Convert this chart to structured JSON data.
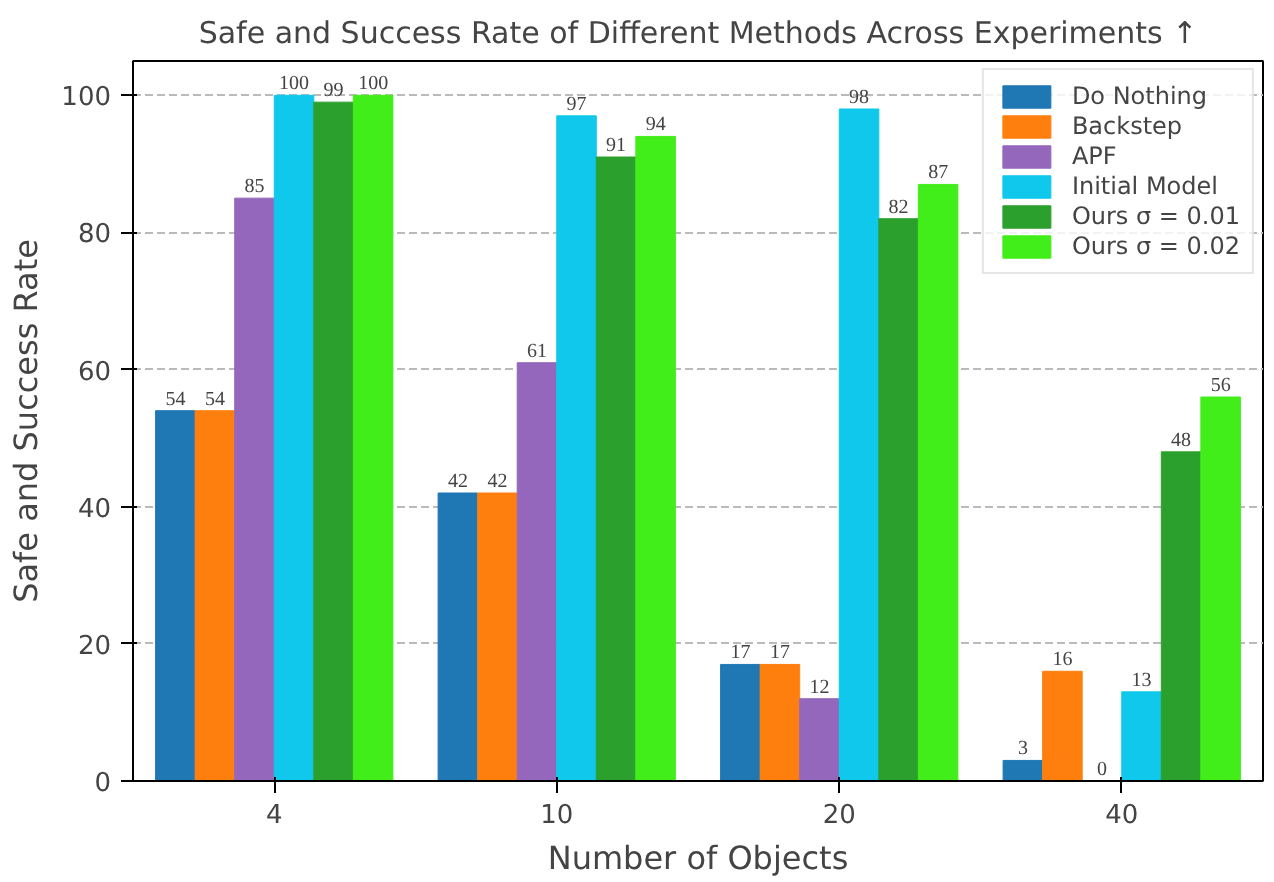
{
  "chart_data": {
    "type": "bar",
    "title": "Safe and Success Rate of Different Methods Across Experiments ↑",
    "xlabel": "Number of Objects",
    "ylabel": "Safe and Success Rate",
    "categories": [
      "4",
      "10",
      "20",
      "40"
    ],
    "series": [
      {
        "name": "Do Nothing",
        "color": "#1f77b4",
        "values": [
          54,
          42,
          17,
          3
        ]
      },
      {
        "name": "Backstep",
        "color": "#ff7f0e",
        "values": [
          54,
          42,
          17,
          16
        ]
      },
      {
        "name": "APF",
        "color": "#9467bd",
        "values": [
          85,
          61,
          12,
          0
        ]
      },
      {
        "name": "Initial Model",
        "color": "#0fc8ec",
        "values": [
          100,
          97,
          98,
          13
        ]
      },
      {
        "name": "Ours σ = 0.01",
        "color": "#2ca02c",
        "values": [
          99,
          91,
          82,
          48
        ]
      },
      {
        "name": "Ours σ = 0.02",
        "color": "#42ee1a",
        "values": [
          100,
          94,
          87,
          56
        ]
      }
    ],
    "ylim": [
      0,
      105
    ],
    "yticks": [
      0,
      20,
      40,
      60,
      80,
      100
    ],
    "grid": "y",
    "legend": "top right",
    "data_labels": true
  }
}
